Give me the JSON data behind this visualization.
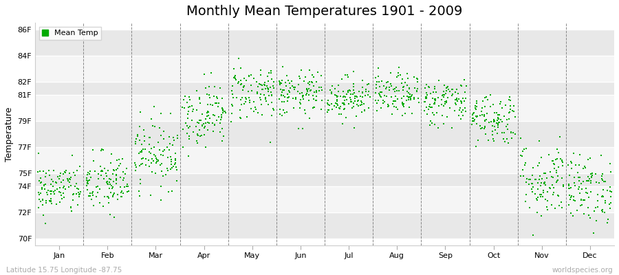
{
  "title": "Monthly Mean Temperatures 1901 - 2009",
  "ylabel": "Temperature",
  "xlabel_labels": [
    "Jan",
    "Feb",
    "Mar",
    "Apr",
    "May",
    "Jun",
    "Jul",
    "Aug",
    "Sep",
    "Oct",
    "Nov",
    "Dec"
  ],
  "ytick_labels": [
    "70F",
    "72F",
    "74F",
    "75F",
    "77F",
    "79F",
    "81F",
    "82F",
    "84F",
    "86F"
  ],
  "ytick_values": [
    70,
    72,
    74,
    75,
    77,
    79,
    81,
    82,
    84,
    86
  ],
  "ylim": [
    69.5,
    86.5
  ],
  "legend_label": "Mean Temp",
  "marker_color": "#00aa00",
  "marker_size": 3,
  "background_color": "#ffffff",
  "plot_bg_color": "#ffffff",
  "stripe_color_dark": "#e8e8e8",
  "stripe_color_light": "#f5f5f5",
  "title_fontsize": 14,
  "axis_fontsize": 9,
  "tick_fontsize": 8,
  "footer_left": "Latitude 15.75 Longitude -87.75",
  "footer_right": "worldspecies.org",
  "seed": 42,
  "n_years": 109,
  "monthly_means": [
    73.8,
    74.2,
    76.5,
    79.5,
    81.2,
    81.0,
    80.8,
    81.0,
    80.5,
    79.2,
    74.5,
    73.8
  ],
  "monthly_stds": [
    1.0,
    1.2,
    1.3,
    1.2,
    1.1,
    0.9,
    0.8,
    0.8,
    0.9,
    1.0,
    1.5,
    1.3
  ]
}
